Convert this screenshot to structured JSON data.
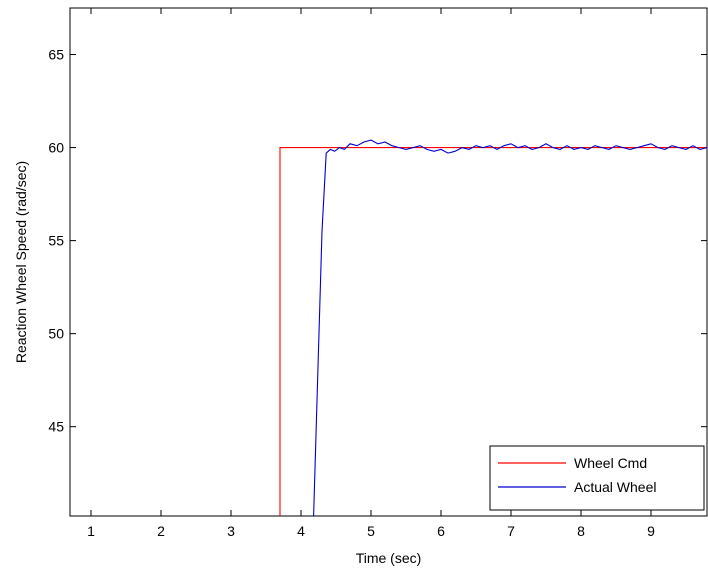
{
  "chart_data": {
    "type": "line",
    "title": "",
    "xlabel": "Time (sec)",
    "ylabel": "Reaction Wheel Speed (rad/sec)",
    "xlim": [
      0.7,
      9.8
    ],
    "ylim": [
      40.2,
      67.5
    ],
    "xticks": [
      1,
      2,
      3,
      4,
      5,
      6,
      7,
      8,
      9
    ],
    "yticks": [
      45,
      50,
      55,
      60,
      65
    ],
    "grid": false,
    "legend_position": "bottom-right",
    "series": [
      {
        "name": "Wheel Cmd",
        "color": "#ff0000",
        "x": [
          3.7,
          3.7,
          9.8
        ],
        "y": [
          40.2,
          60,
          60
        ]
      },
      {
        "name": "Actual Wheel",
        "color": "#0000cc",
        "x": [
          4.18,
          4.3,
          4.36,
          4.42,
          4.48,
          4.55,
          4.62,
          4.7,
          4.8,
          4.9,
          5.0,
          5.1,
          5.2,
          5.3,
          5.4,
          5.5,
          5.6,
          5.7,
          5.8,
          5.9,
          6.0,
          6.1,
          6.2,
          6.3,
          6.4,
          6.5,
          6.6,
          6.7,
          6.8,
          6.9,
          7.0,
          7.1,
          7.2,
          7.3,
          7.4,
          7.5,
          7.6,
          7.7,
          7.8,
          7.9,
          8.0,
          8.1,
          8.2,
          8.3,
          8.4,
          8.5,
          8.6,
          8.7,
          8.8,
          8.9,
          9.0,
          9.1,
          9.2,
          9.3,
          9.4,
          9.5,
          9.6,
          9.7,
          9.8
        ],
        "y": [
          40.2,
          55.5,
          59.7,
          59.9,
          59.8,
          60.0,
          59.9,
          60.2,
          60.1,
          60.3,
          60.4,
          60.2,
          60.3,
          60.1,
          60.0,
          59.9,
          60.0,
          60.1,
          59.9,
          59.8,
          59.9,
          59.7,
          59.8,
          60.0,
          59.9,
          60.1,
          60.0,
          60.1,
          59.9,
          60.1,
          60.2,
          60.0,
          60.1,
          59.9,
          60.0,
          60.2,
          60.0,
          59.9,
          60.1,
          59.9,
          60.0,
          59.9,
          60.1,
          60.0,
          59.9,
          60.1,
          60.0,
          59.9,
          60.0,
          60.1,
          60.2,
          60.0,
          59.9,
          60.1,
          60.0,
          59.9,
          60.1,
          59.9,
          60.0
        ]
      }
    ]
  }
}
